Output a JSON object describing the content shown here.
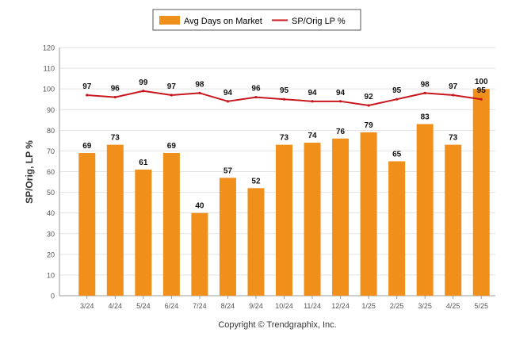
{
  "chart_data": {
    "type": "bar",
    "categories": [
      "3/24",
      "4/24",
      "5/24",
      "6/24",
      "7/24",
      "8/24",
      "9/24",
      "10/24",
      "11/24",
      "12/24",
      "1/25",
      "2/25",
      "3/25",
      "4/25",
      "5/25"
    ],
    "series": [
      {
        "name": "Avg Days on Market",
        "type": "bar",
        "color": "#f0901a",
        "values": [
          69,
          73,
          61,
          69,
          40,
          57,
          52,
          73,
          74,
          76,
          79,
          65,
          83,
          73,
          100
        ]
      },
      {
        "name": "SP/Orig LP %",
        "type": "line",
        "color": "#c8171e",
        "values": [
          97,
          96,
          99,
          97,
          98,
          94,
          96,
          95,
          94,
          94,
          92,
          95,
          98,
          97,
          95
        ]
      }
    ],
    "ylabel": "SP/Orig, LP %",
    "ylim": [
      0,
      120
    ],
    "yticks": [
      0,
      10,
      20,
      30,
      40,
      50,
      60,
      70,
      80,
      90,
      100,
      110,
      120
    ],
    "grid": true,
    "legend_position": "top-center"
  },
  "footer": {
    "copyright": "Copyright © Trendgraphix, Inc."
  }
}
